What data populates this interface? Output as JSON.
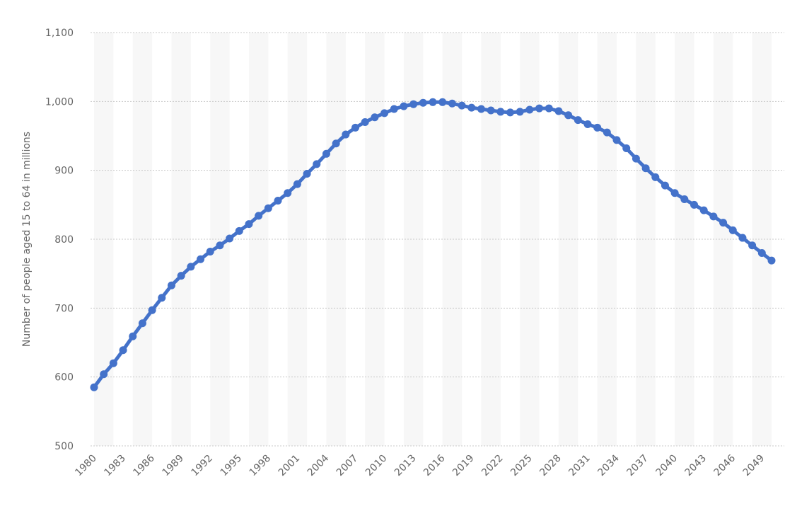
{
  "chart_data": {
    "type": "line",
    "title": "",
    "xlabel": "",
    "ylabel": "Number of people aged 15 to 64 in millions",
    "ylim": [
      500,
      1100
    ],
    "yticks": [
      "500",
      "600",
      "700",
      "800",
      "900",
      "1,000",
      "1,100"
    ],
    "ytick_values": [
      500,
      600,
      700,
      800,
      900,
      1000,
      1100
    ],
    "xticks": [
      "1980",
      "1983",
      "1986",
      "1989",
      "1992",
      "1995",
      "1998",
      "2001",
      "2004",
      "2007",
      "2010",
      "2013",
      "2016",
      "2019",
      "2022",
      "2025",
      "2028",
      "2031",
      "2034",
      "2037",
      "2040",
      "2043",
      "2046",
      "2049"
    ],
    "grid": true,
    "legend": "none",
    "colors": {
      "line": "#4472ca",
      "band": "#f7f7f7",
      "grid": "#c8c8c8",
      "text": "#666666"
    },
    "x": [
      1980,
      1981,
      1982,
      1983,
      1984,
      1985,
      1986,
      1987,
      1988,
      1989,
      1990,
      1991,
      1992,
      1993,
      1994,
      1995,
      1996,
      1997,
      1998,
      1999,
      2000,
      2001,
      2002,
      2003,
      2004,
      2005,
      2006,
      2007,
      2008,
      2009,
      2010,
      2011,
      2012,
      2013,
      2014,
      2015,
      2016,
      2017,
      2018,
      2019,
      2020,
      2021,
      2022,
      2023,
      2024,
      2025,
      2026,
      2027,
      2028,
      2029,
      2030,
      2031,
      2032,
      2033,
      2034,
      2035,
      2036,
      2037,
      2038,
      2039,
      2040,
      2041,
      2042,
      2043,
      2044,
      2045,
      2046,
      2047,
      2048,
      2049,
      2050
    ],
    "series": [
      {
        "values": [
          585,
          604,
          620,
          639,
          659,
          678,
          697,
          715,
          733,
          747,
          760,
          771,
          782,
          791,
          801,
          812,
          822,
          834,
          845,
          856,
          867,
          880,
          895,
          909,
          924,
          939,
          952,
          962,
          970,
          977,
          983,
          989,
          993,
          996,
          998,
          999,
          999,
          997,
          994,
          991,
          989,
          987,
          985,
          984,
          985,
          988,
          990,
          990,
          986,
          980,
          973,
          967,
          962,
          955,
          944,
          932,
          917,
          903,
          890,
          878,
          867,
          858,
          850,
          842,
          833,
          824,
          813,
          802,
          791,
          780,
          769
        ]
      }
    ]
  }
}
